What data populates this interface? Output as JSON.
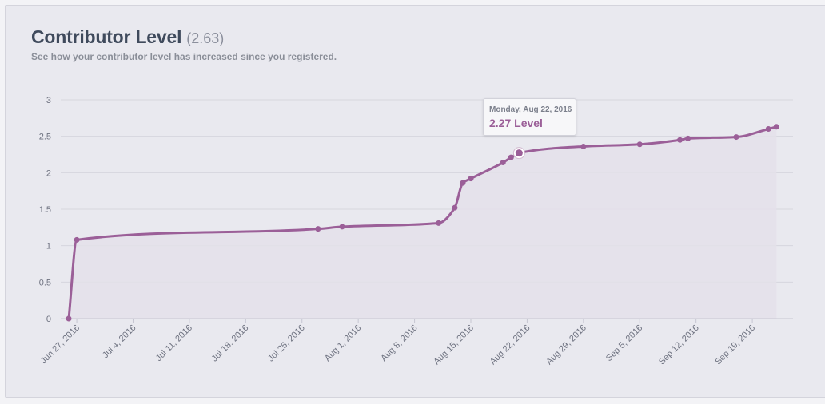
{
  "header": {
    "title": "Contributor Level",
    "title_value": "(2.63)",
    "subtitle": "See how your contributor level has increased since you registered."
  },
  "tooltip": {
    "date": "Monday, Aug 22, 2016",
    "value": "2.27 Level"
  },
  "colors": {
    "line": "#9b5f98",
    "area": "#e4e0ea",
    "grid": "#d6d6de",
    "background": "#e9e9ef"
  },
  "chart_data": {
    "type": "area",
    "title": "Contributor Level",
    "xlabel": "",
    "ylabel": "",
    "ylim": [
      0,
      3
    ],
    "y_ticks": [
      "0",
      "0.5",
      "1",
      "1.5",
      "2",
      "2.5",
      "3"
    ],
    "x_ticks": [
      "Jun 27, 2016",
      "Jul 4, 2016",
      "Jul 11, 2016",
      "Jul 18, 2016",
      "Jul 25, 2016",
      "Aug 1, 2016",
      "Aug 8, 2016",
      "Aug 15, 2016",
      "Aug 22, 2016",
      "Aug 29, 2016",
      "Sep 5, 2016",
      "Sep 12, 2016",
      "Sep 19, 2016"
    ],
    "grid": true,
    "legend": "none",
    "series": [
      {
        "points": [
          {
            "x": "2016-06-26",
            "y": 0.0
          },
          {
            "x": "2016-06-27",
            "y": 1.08
          },
          {
            "x": "2016-07-27",
            "y": 1.23
          },
          {
            "x": "2016-07-30",
            "y": 1.26
          },
          {
            "x": "2016-08-11",
            "y": 1.31
          },
          {
            "x": "2016-08-13",
            "y": 1.52
          },
          {
            "x": "2016-08-14",
            "y": 1.86
          },
          {
            "x": "2016-08-15",
            "y": 1.92
          },
          {
            "x": "2016-08-19",
            "y": 2.14
          },
          {
            "x": "2016-08-20",
            "y": 2.21
          },
          {
            "x": "2016-08-21",
            "y": 2.27
          },
          {
            "x": "2016-08-29",
            "y": 2.36
          },
          {
            "x": "2016-09-05",
            "y": 2.39
          },
          {
            "x": "2016-09-10",
            "y": 2.45
          },
          {
            "x": "2016-09-11",
            "y": 2.47
          },
          {
            "x": "2016-09-17",
            "y": 2.49
          },
          {
            "x": "2016-09-21",
            "y": 2.6
          },
          {
            "x": "2016-09-22",
            "y": 2.63
          }
        ]
      }
    ],
    "highlighted_index": 10
  }
}
